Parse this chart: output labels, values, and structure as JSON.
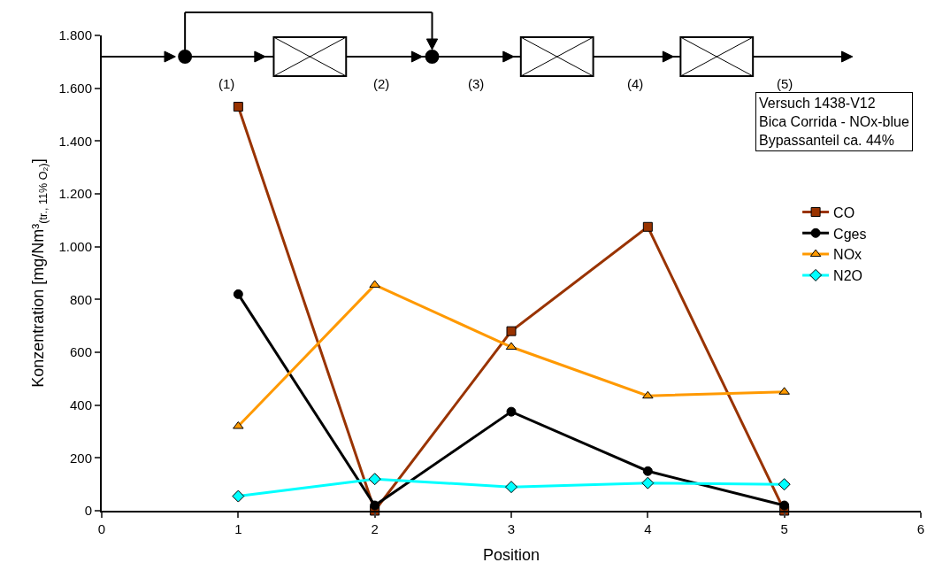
{
  "chart_data": {
    "type": "line",
    "xlabel": "Position",
    "ylabel": "Konzentration [mg/Nm³$_{(tr., 11% O₂)}$]",
    "x": [
      1,
      2,
      3,
      4,
      5
    ],
    "series": [
      {
        "name": "CO",
        "color": "#993300",
        "marker": "square",
        "values": [
          1530,
          0,
          680,
          1075,
          0
        ]
      },
      {
        "name": "Cges",
        "color": "#000000",
        "marker": "circle",
        "values": [
          820,
          20,
          375,
          150,
          20
        ]
      },
      {
        "name": "NOx",
        "color": "#ff9900",
        "marker": "triangle",
        "values": [
          320,
          855,
          620,
          435,
          450
        ]
      },
      {
        "name": "N2O",
        "color": "#00ffff",
        "marker": "diamond",
        "values": [
          55,
          120,
          90,
          105,
          100
        ]
      }
    ],
    "xlim": [
      0,
      6
    ],
    "xticks": [
      0,
      1,
      2,
      3,
      4,
      5,
      6
    ],
    "ylim": [
      0,
      1800
    ],
    "yticks": [
      {
        "value": 0,
        "label": "0"
      },
      {
        "value": 200,
        "label": "200"
      },
      {
        "value": 400,
        "label": "400"
      },
      {
        "value": 600,
        "label": "600"
      },
      {
        "value": 800,
        "label": "800"
      },
      {
        "value": 1000,
        "label": "1.000"
      },
      {
        "value": 1200,
        "label": "1.200"
      },
      {
        "value": 1400,
        "label": "1.400"
      },
      {
        "value": 1600,
        "label": "1.600"
      },
      {
        "value": 1800,
        "label": "1.800"
      }
    ],
    "legend": "right",
    "line_style": "solid",
    "annotations": [
      "(1)",
      "(2)",
      "(3)",
      "(4)",
      "(5)",
      "Versuch 1438-V12\nBica Corrida - NOx-blue\nBypassanteil ca. 44%"
    ]
  }
}
